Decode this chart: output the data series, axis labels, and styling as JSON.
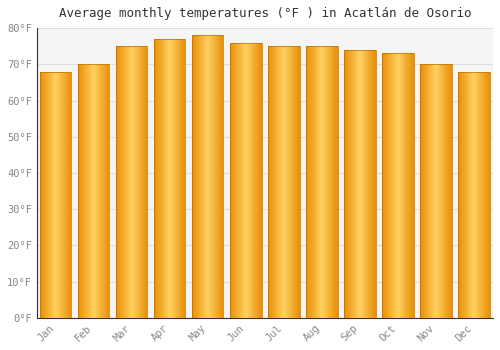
{
  "title": "Average monthly temperatures (°F ) in Acatlán de Osorio",
  "months": [
    "Jan",
    "Feb",
    "Mar",
    "Apr",
    "May",
    "Jun",
    "Jul",
    "Aug",
    "Sep",
    "Oct",
    "Nov",
    "Dec"
  ],
  "values": [
    68,
    70,
    75,
    77,
    78,
    76,
    75,
    75,
    74,
    73,
    70,
    68
  ],
  "bar_color_center": "#FFD060",
  "bar_color_edge": "#E8900A",
  "background_color": "#FFFFFF",
  "plot_bg_color": "#F5F5F5",
  "grid_color": "#DDDDDD",
  "ylim": [
    0,
    80
  ],
  "yticks": [
    0,
    10,
    20,
    30,
    40,
    50,
    60,
    70,
    80
  ],
  "title_fontsize": 9,
  "tick_fontsize": 7.5,
  "figsize": [
    5.0,
    3.5
  ],
  "dpi": 100
}
